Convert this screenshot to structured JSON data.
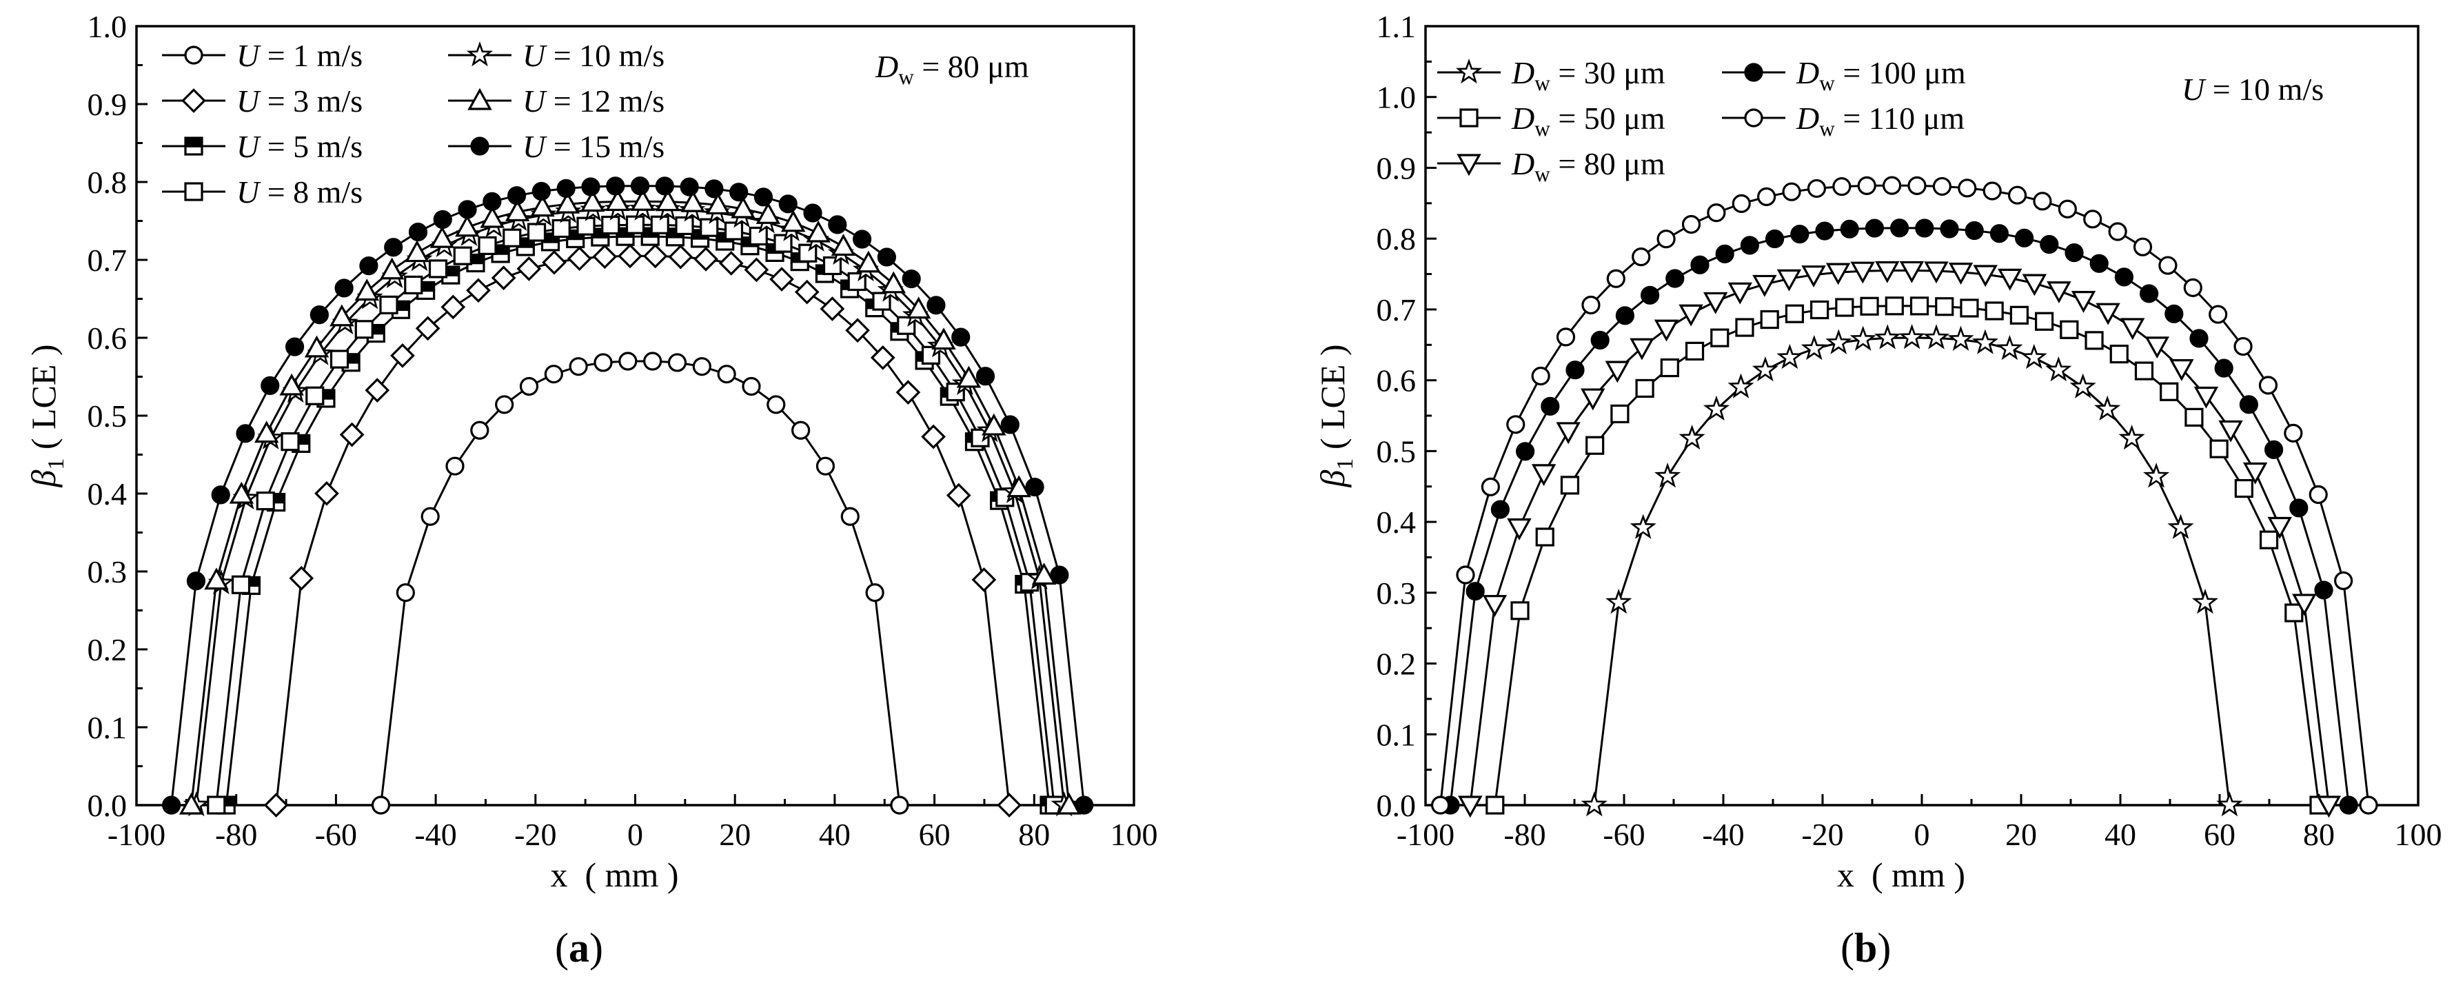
{
  "charts": [
    {
      "type": "line",
      "caption_letter": "a",
      "xlabel": "x  ( mm )",
      "ylabel_symbol": "β",
      "ylabel_sub": "1",
      "ylabel_rest": "( LCE )",
      "xlim": [
        -100,
        100
      ],
      "ylim": [
        0,
        1.0
      ],
      "xticks": [
        -100,
        -80,
        -60,
        -40,
        -20,
        0,
        20,
        40,
        60,
        80,
        100
      ],
      "yticks": [
        0.0,
        0.1,
        0.2,
        0.3,
        0.4,
        0.5,
        0.6,
        0.7,
        0.8,
        0.9,
        1.0
      ],
      "annotation": {
        "symbol": "D",
        "sub": "w",
        "rest": " = 80 μm"
      },
      "series": [
        {
          "name_symbol": "U",
          "name_rest": " = 1 m/s",
          "marker": "circle-open",
          "x0": -51,
          "x1": 53,
          "peak": 0.57,
          "xpeak": 1
        },
        {
          "name_symbol": "U",
          "name_rest": " = 3 m/s",
          "marker": "diamond-open",
          "x0": -72,
          "x1": 75,
          "peak": 0.705,
          "xpeak": 1
        },
        {
          "name_symbol": "U",
          "name_rest": " = 5 m/s",
          "marker": "square-half",
          "x0": -82,
          "x1": 83,
          "peak": 0.73,
          "xpeak": 1
        },
        {
          "name_symbol": "U",
          "name_rest": " = 8 m/s",
          "marker": "square-open",
          "x0": -84,
          "x1": 84,
          "peak": 0.745,
          "xpeak": 1
        },
        {
          "name_symbol": "U",
          "name_rest": " = 10 m/s",
          "marker": "star-open",
          "x0": -88,
          "x1": 86,
          "peak": 0.765,
          "xpeak": 1
        },
        {
          "name_symbol": "U",
          "name_rest": " = 12 m/s",
          "marker": "triangle-up-open",
          "x0": -89,
          "x1": 87,
          "peak": 0.775,
          "xpeak": 1
        },
        {
          "name_symbol": "U",
          "name_rest": " = 15 m/s",
          "marker": "circle-filled",
          "x0": -93,
          "x1": 90,
          "peak": 0.795,
          "xpeak": 1
        }
      ]
    },
    {
      "type": "line",
      "caption_letter": "b",
      "xlabel": "x  ( mm )",
      "ylabel_symbol": "β",
      "ylabel_sub": "1",
      "ylabel_rest": "( LCE )",
      "xlim": [
        -100,
        100
      ],
      "ylim": [
        0,
        1.1
      ],
      "xticks": [
        -100,
        -80,
        -60,
        -40,
        -20,
        0,
        20,
        40,
        60,
        80,
        100
      ],
      "yticks": [
        0.0,
        0.1,
        0.2,
        0.3,
        0.4,
        0.5,
        0.6,
        0.7,
        0.8,
        0.9,
        1.0,
        1.1
      ],
      "annotation": {
        "symbol": "U",
        "sub": "",
        "rest": " = 10 m/s"
      },
      "series": [
        {
          "name_symbol": "D",
          "name_sub": "w",
          "name_rest": " = 30 μm",
          "marker": "star-open",
          "x0": -66,
          "x1": 62,
          "peak": 0.66,
          "xpeak": -2
        },
        {
          "name_symbol": "D",
          "name_sub": "w",
          "name_rest": " = 50 μm",
          "marker": "square-open",
          "x0": -86,
          "x1": 80,
          "peak": 0.705,
          "xpeak": -4
        },
        {
          "name_symbol": "D",
          "name_sub": "w",
          "name_rest": " = 80 μm",
          "marker": "triangle-down-open",
          "x0": -91,
          "x1": 82,
          "peak": 0.755,
          "xpeak": -4
        },
        {
          "name_symbol": "D",
          "name_sub": "w",
          "name_rest": " = 100 μm",
          "marker": "circle-filled",
          "x0": -95,
          "x1": 86,
          "peak": 0.815,
          "xpeak": -4
        },
        {
          "name_symbol": "D",
          "name_sub": "w",
          "name_rest": " = 110 μm",
          "marker": "circle-open",
          "x0": -97,
          "x1": 90,
          "peak": 0.875,
          "xpeak": -6
        }
      ]
    }
  ]
}
